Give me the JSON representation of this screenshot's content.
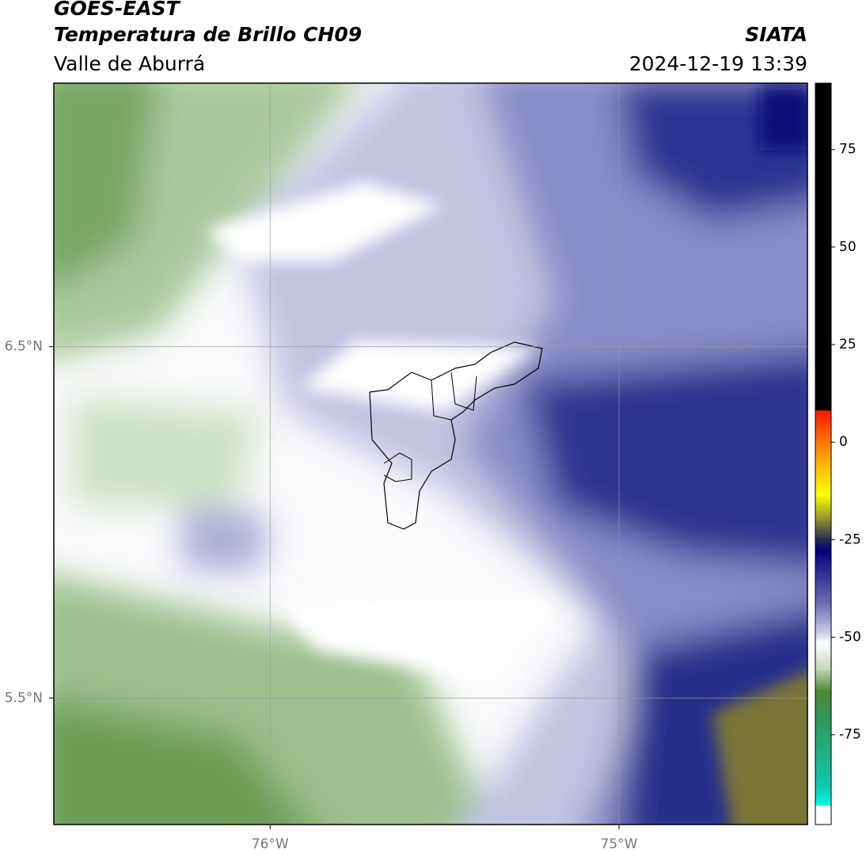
{
  "header": {
    "source": "GOES-EAST",
    "product": "Temperatura de Brillo CH09",
    "region": "Valle de Aburrá",
    "agency": "SIATA",
    "datetime": "2024-12-19 13:39"
  },
  "map": {
    "xlim": [
      -76.62,
      -74.46
    ],
    "ylim": [
      5.14,
      7.25
    ],
    "xticks": [
      {
        "value": -76,
        "label": "76°W"
      },
      {
        "value": -75,
        "label": "75°W"
      }
    ],
    "yticks": [
      {
        "value": 6.5,
        "label": "6.5°N"
      },
      {
        "value": 5.5,
        "label": "5.5°N"
      }
    ],
    "grid": true
  },
  "colorbar": {
    "lim": [
      -98,
      92
    ],
    "ticks": [
      75,
      50,
      25,
      0,
      -25,
      -50,
      -75
    ]
  }
}
